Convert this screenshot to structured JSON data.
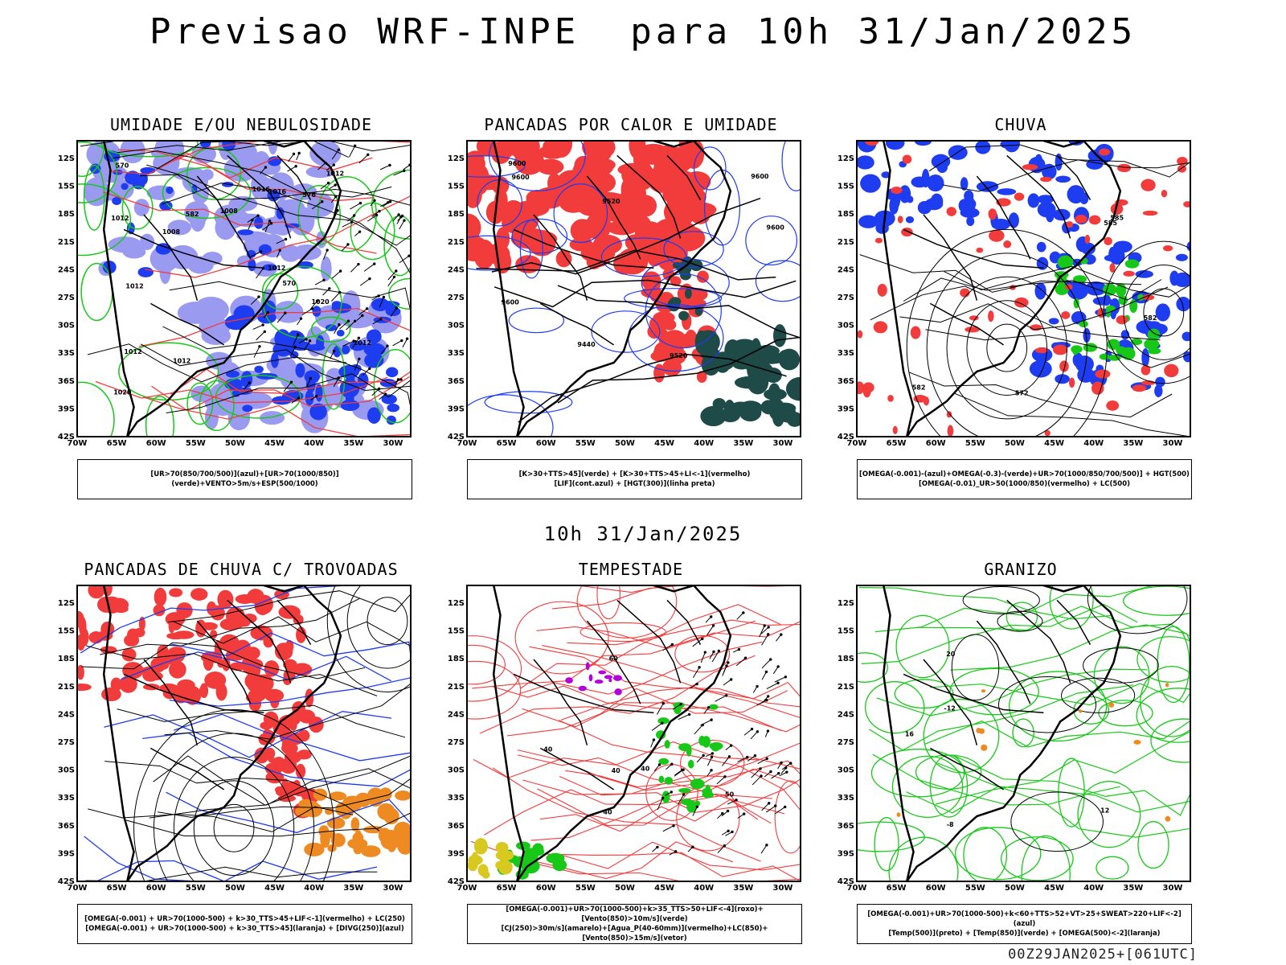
{
  "title": "Previsao WRF-INPE  para 10h 31/Jan/2025",
  "subtitle": "10h 31/Jan/2025",
  "footer": "00Z29JAN2025+[061UTC]",
  "latitudes": [
    "12S",
    "15S",
    "18S",
    "21S",
    "24S",
    "27S",
    "30S",
    "33S",
    "36S",
    "39S",
    "42S"
  ],
  "longitudes": [
    "70W",
    "65W",
    "60W",
    "55W",
    "50W",
    "45W",
    "40W",
    "35W",
    "30W"
  ],
  "colors": {
    "red": "#f23b3b",
    "green": "#18c818",
    "blue": "#1e3cf0",
    "lightblue": "#9a9af0",
    "darkteal": "#1e4a48",
    "orange": "#ee8a22",
    "purple": "#b400d8",
    "yellow": "#d8c820"
  },
  "panels": [
    {
      "id": "umidade",
      "title": "UMIDADE E/OU NEBULOSIDADE",
      "legend": [
        "[UR>70(850/700/500)](azul)+[UR>70(1000/850)](verde)+VENTO>5m/s+ESP(500/1000)"
      ],
      "labels": [
        "1012",
        "1012",
        "1012",
        "1008",
        "1008",
        "1012",
        "1012",
        "1012",
        "1016",
        "1016",
        "1020",
        "1020",
        "1012",
        "570",
        "570",
        "582",
        "576"
      ]
    },
    {
      "id": "pancadas-calor",
      "title": "PANCADAS POR CALOR E UMIDADE",
      "legend": [
        "[K>30+TTS>45](verde) + [K>30+TTS>45+LI<-1](vermelho)",
        "[LIF](cont.azul) + [HGT(300)](linha preta)"
      ],
      "labels": [
        "9600",
        "9600",
        "9600",
        "9600",
        "9600",
        "9520",
        "9520",
        "9440"
      ]
    },
    {
      "id": "chuva",
      "title": "CHUVA",
      "legend": [
        "[OMEGA(-0.001)-(azul)+OMEGA(-0.3)-(verde)+UR>70(1000/850/700/500)] + HGT(500)",
        "[OMEGA(-0.01)_UR>50(1000/850)(vermelho) + LC(500)"
      ],
      "labels": [
        "582",
        "585",
        "582",
        "572",
        "585"
      ]
    },
    {
      "id": "trovoadas",
      "title": "PANCADAS DE CHUVA C/ TROVOADAS",
      "legend": [
        "[OMEGA(-0.001) + UR>70(1000-500) + k>30_TTS>45+LIF<-1](vermelho) + LC(250)",
        "[OMEGA(-0.001) + UR>70(1000-500) + k>30_TTS>45](laranja) + [DIVG(250)](azul)"
      ],
      "labels": []
    },
    {
      "id": "tempestade",
      "title": "TEMPESTADE",
      "legend": [
        "[OMEGA(-0.001)+UR>70(1000-500)+k>35_TTS>50+LIF<-4](roxo)+[Vento(850)>10m/s](verde)",
        "[CJ(250)>30m/s](amarelo)+[Agua_P(40-60mm)](vermelho)+LC(850)+[Vento(850)>15m/s](vetor)"
      ],
      "labels": [
        "40",
        "40",
        "50",
        "40",
        "60",
        "40"
      ]
    },
    {
      "id": "granizo",
      "title": "GRANIZO",
      "legend": [
        "[OMEGA(-0.001)+UR>70(1000-500)+k<60+TTS>52+VT>25+SWEAT>220+LIF<-2](azul)",
        "[Temp(500)](preto) + [Temp(850)](verde) + [OMEGA(500)<-2](laranja)"
      ],
      "labels": [
        "-12",
        "-8",
        "12",
        "16",
        "20"
      ]
    }
  ]
}
